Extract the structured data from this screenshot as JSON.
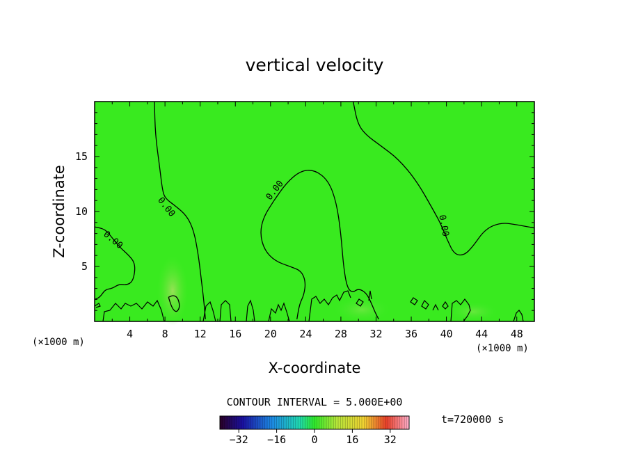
{
  "chart_data": {
    "type": "heatmap",
    "title": "vertical velocity",
    "xlabel": "X-coordinate",
    "ylabel": "Z-coordinate",
    "x_unit_left": "(×1000 m)",
    "x_unit_right": "(×1000 m)",
    "xlim": [
      0,
      50
    ],
    "ylim": [
      0,
      20
    ],
    "xticks": [
      4,
      8,
      12,
      16,
      20,
      24,
      28,
      32,
      36,
      40,
      44,
      48
    ],
    "xtick_labels": [
      "4",
      "8",
      "12",
      "16",
      "20",
      "24",
      "28",
      "32",
      "36",
      "40",
      "44",
      "48"
    ],
    "yticks": [
      5,
      10,
      15
    ],
    "ytick_labels": [
      "5",
      "10",
      "15"
    ],
    "field_value_dominant": 0,
    "contour_interval_text": "CONTOUR INTERVAL = 5.000E+00",
    "contour_labels": [
      "0.00",
      "0.00",
      "0.00",
      "0.00"
    ],
    "colorbar": {
      "min": -40,
      "max": 40,
      "tick_values": [
        -32,
        -16,
        0,
        16,
        32
      ],
      "tick_labels": [
        "−32",
        "−16",
        "0",
        "16",
        "32"
      ]
    },
    "time_label": "t=720000 s",
    "grid": false,
    "zero_contours": [
      {
        "points": [
          [
            6.8,
            20
          ],
          [
            6.9,
            17
          ],
          [
            7.4,
            14
          ],
          [
            7.7,
            12
          ],
          [
            8.0,
            11.2
          ],
          [
            9.2,
            10.5
          ],
          [
            10.5,
            9.6
          ],
          [
            11.3,
            8.2
          ],
          [
            11.8,
            6
          ],
          [
            12.1,
            4
          ],
          [
            12.4,
            2
          ],
          [
            12.6,
            0.2
          ]
        ]
      },
      {
        "points": [
          [
            0,
            8.6
          ],
          [
            1.2,
            8.4
          ],
          [
            2.0,
            7.6
          ],
          [
            2.8,
            6.8
          ],
          [
            3.9,
            6.0
          ],
          [
            4.5,
            5.4
          ],
          [
            4.6,
            4.6
          ],
          [
            4.3,
            3.6
          ],
          [
            3.6,
            3.3
          ],
          [
            2.8,
            3.4
          ],
          [
            2.0,
            3.0
          ],
          [
            1.2,
            2.9
          ],
          [
            0.6,
            2.2
          ],
          [
            0,
            2.0
          ]
        ]
      },
      {
        "points": [
          [
            20.4,
            11.0
          ],
          [
            21.8,
            12.6
          ],
          [
            23.4,
            13.7
          ],
          [
            25.0,
            13.8
          ],
          [
            26.6,
            12.8
          ],
          [
            27.5,
            10.8
          ],
          [
            28.0,
            8.0
          ],
          [
            28.3,
            5.0
          ],
          [
            28.7,
            3.1
          ],
          [
            29.3,
            2.6
          ],
          [
            30.0,
            3.0
          ],
          [
            30.9,
            2.6
          ],
          [
            31.5,
            1.6
          ],
          [
            31.9,
            0.8
          ],
          [
            32.3,
            0.2
          ]
        ]
      },
      {
        "points": [
          [
            20.4,
            11.0
          ],
          [
            19.2,
            9.5
          ],
          [
            18.8,
            8.0
          ],
          [
            19.3,
            6.5
          ],
          [
            20.5,
            5.5
          ],
          [
            22.2,
            5.0
          ],
          [
            23.5,
            4.6
          ],
          [
            24.0,
            3.6
          ],
          [
            23.8,
            2.4
          ],
          [
            23.3,
            1.6
          ],
          [
            23.0,
            0.2
          ]
        ]
      },
      {
        "points": [
          [
            29.4,
            20
          ],
          [
            29.9,
            18
          ],
          [
            30.8,
            17
          ],
          [
            32.5,
            16.0
          ],
          [
            34.5,
            14.8
          ],
          [
            36.6,
            12.8
          ],
          [
            38.6,
            10.0
          ],
          [
            39.4,
            8.8
          ],
          [
            40.1,
            7.4
          ],
          [
            40.9,
            6.1
          ],
          [
            42.0,
            6.0
          ],
          [
            43.0,
            6.8
          ],
          [
            44.4,
            8.4
          ],
          [
            46.2,
            9.0
          ],
          [
            48.0,
            8.8
          ],
          [
            50,
            8.5
          ]
        ]
      },
      {
        "points": [
          [
            8.4,
            2.2
          ],
          [
            8.8,
            1.2
          ],
          [
            9.3,
            0.8
          ],
          [
            9.7,
            1.3
          ],
          [
            9.5,
            2.1
          ],
          [
            9.0,
            2.4
          ],
          [
            8.4,
            2.2
          ]
        ]
      }
    ]
  }
}
